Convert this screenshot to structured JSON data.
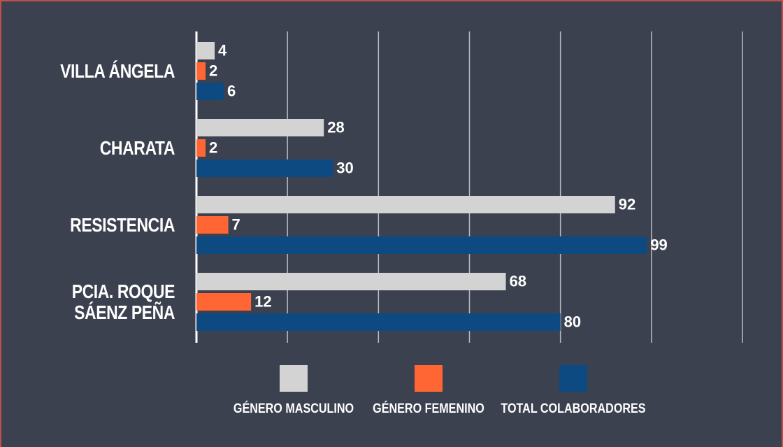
{
  "chart_data": {
    "type": "hbar",
    "categories": [
      "VILLA ÁNGELA",
      "CHARATA",
      "RESISTENCIA",
      "PCIA. ROQUE SÁENZ PEÑA"
    ],
    "series": [
      {
        "name": "GÉNERO MASCULINO",
        "color": "#d3d3d3",
        "values": [
          4,
          28,
          92,
          68
        ]
      },
      {
        "name": "GÉNERO FEMENINO",
        "color": "#ff6633",
        "values": [
          2,
          2,
          7,
          12
        ]
      },
      {
        "name": "TOTAL COLABORADORES",
        "color": "#0d4a82",
        "values": [
          6,
          30,
          99,
          80
        ]
      }
    ],
    "xlim": [
      0,
      120
    ],
    "xticks": [
      0,
      20,
      40,
      60,
      80,
      100,
      120
    ],
    "grid": true,
    "legend": "bottom"
  }
}
